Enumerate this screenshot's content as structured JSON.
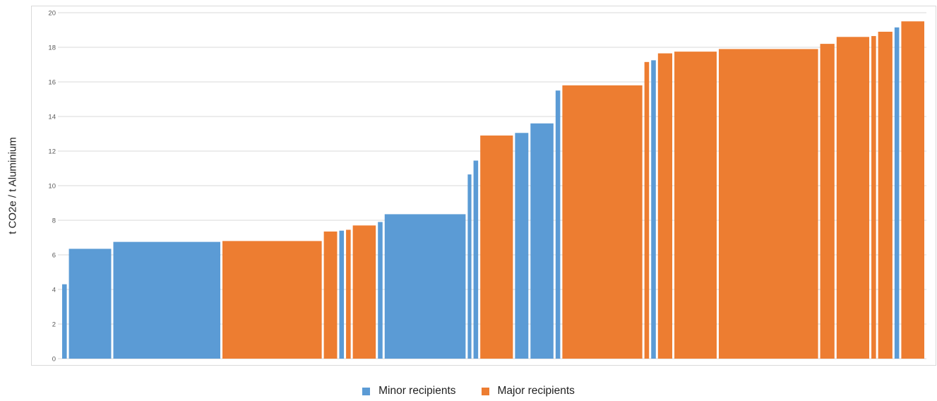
{
  "colors": {
    "minor": "#5b9bd5",
    "major": "#ed7d31",
    "grid": "#d9d9d9",
    "tick_text": "#595959"
  },
  "chart_data": {
    "type": "bar",
    "ylabel": "t CO2e / t Aluminium",
    "ylim": [
      0,
      20
    ],
    "yticks": [
      0,
      2,
      4,
      6,
      8,
      10,
      12,
      14,
      16,
      18,
      20
    ],
    "grid": true,
    "legend": {
      "placement": "bottom",
      "entries": [
        {
          "key": "minor",
          "label": "Minor recipients"
        },
        {
          "key": "major",
          "label": "Major recipients"
        }
      ]
    },
    "bars": [
      {
        "width": 0.7,
        "value": 4.3,
        "group": "minor"
      },
      {
        "width": 4.6,
        "value": 6.35,
        "group": "minor"
      },
      {
        "width": 11.3,
        "value": 6.75,
        "group": "minor"
      },
      {
        "width": 10.5,
        "value": 6.8,
        "group": "major"
      },
      {
        "width": 1.6,
        "value": 7.35,
        "group": "major"
      },
      {
        "width": 0.7,
        "value": 7.4,
        "group": "minor"
      },
      {
        "width": 0.7,
        "value": 7.45,
        "group": "major"
      },
      {
        "width": 2.6,
        "value": 7.7,
        "group": "major"
      },
      {
        "width": 0.7,
        "value": 7.9,
        "group": "minor"
      },
      {
        "width": 8.6,
        "value": 8.35,
        "group": "minor"
      },
      {
        "width": 0.6,
        "value": 10.65,
        "group": "minor"
      },
      {
        "width": 0.7,
        "value": 11.45,
        "group": "minor"
      },
      {
        "width": 3.6,
        "value": 12.9,
        "group": "major"
      },
      {
        "width": 1.6,
        "value": 13.05,
        "group": "minor"
      },
      {
        "width": 2.6,
        "value": 13.6,
        "group": "minor"
      },
      {
        "width": 0.7,
        "value": 15.5,
        "group": "minor"
      },
      {
        "width": 8.5,
        "value": 15.8,
        "group": "major"
      },
      {
        "width": 0.7,
        "value": 17.15,
        "group": "major"
      },
      {
        "width": 0.7,
        "value": 17.25,
        "group": "minor"
      },
      {
        "width": 1.7,
        "value": 17.65,
        "group": "major"
      },
      {
        "width": 4.6,
        "value": 17.75,
        "group": "major"
      },
      {
        "width": 10.5,
        "value": 17.9,
        "group": "major"
      },
      {
        "width": 1.7,
        "value": 18.2,
        "group": "major"
      },
      {
        "width": 3.6,
        "value": 18.6,
        "group": "major"
      },
      {
        "width": 0.7,
        "value": 18.65,
        "group": "major"
      },
      {
        "width": 1.7,
        "value": 18.9,
        "group": "major"
      },
      {
        "width": 0.7,
        "value": 19.15,
        "group": "minor"
      },
      {
        "width": 2.6,
        "value": 19.5,
        "group": "major"
      }
    ]
  }
}
